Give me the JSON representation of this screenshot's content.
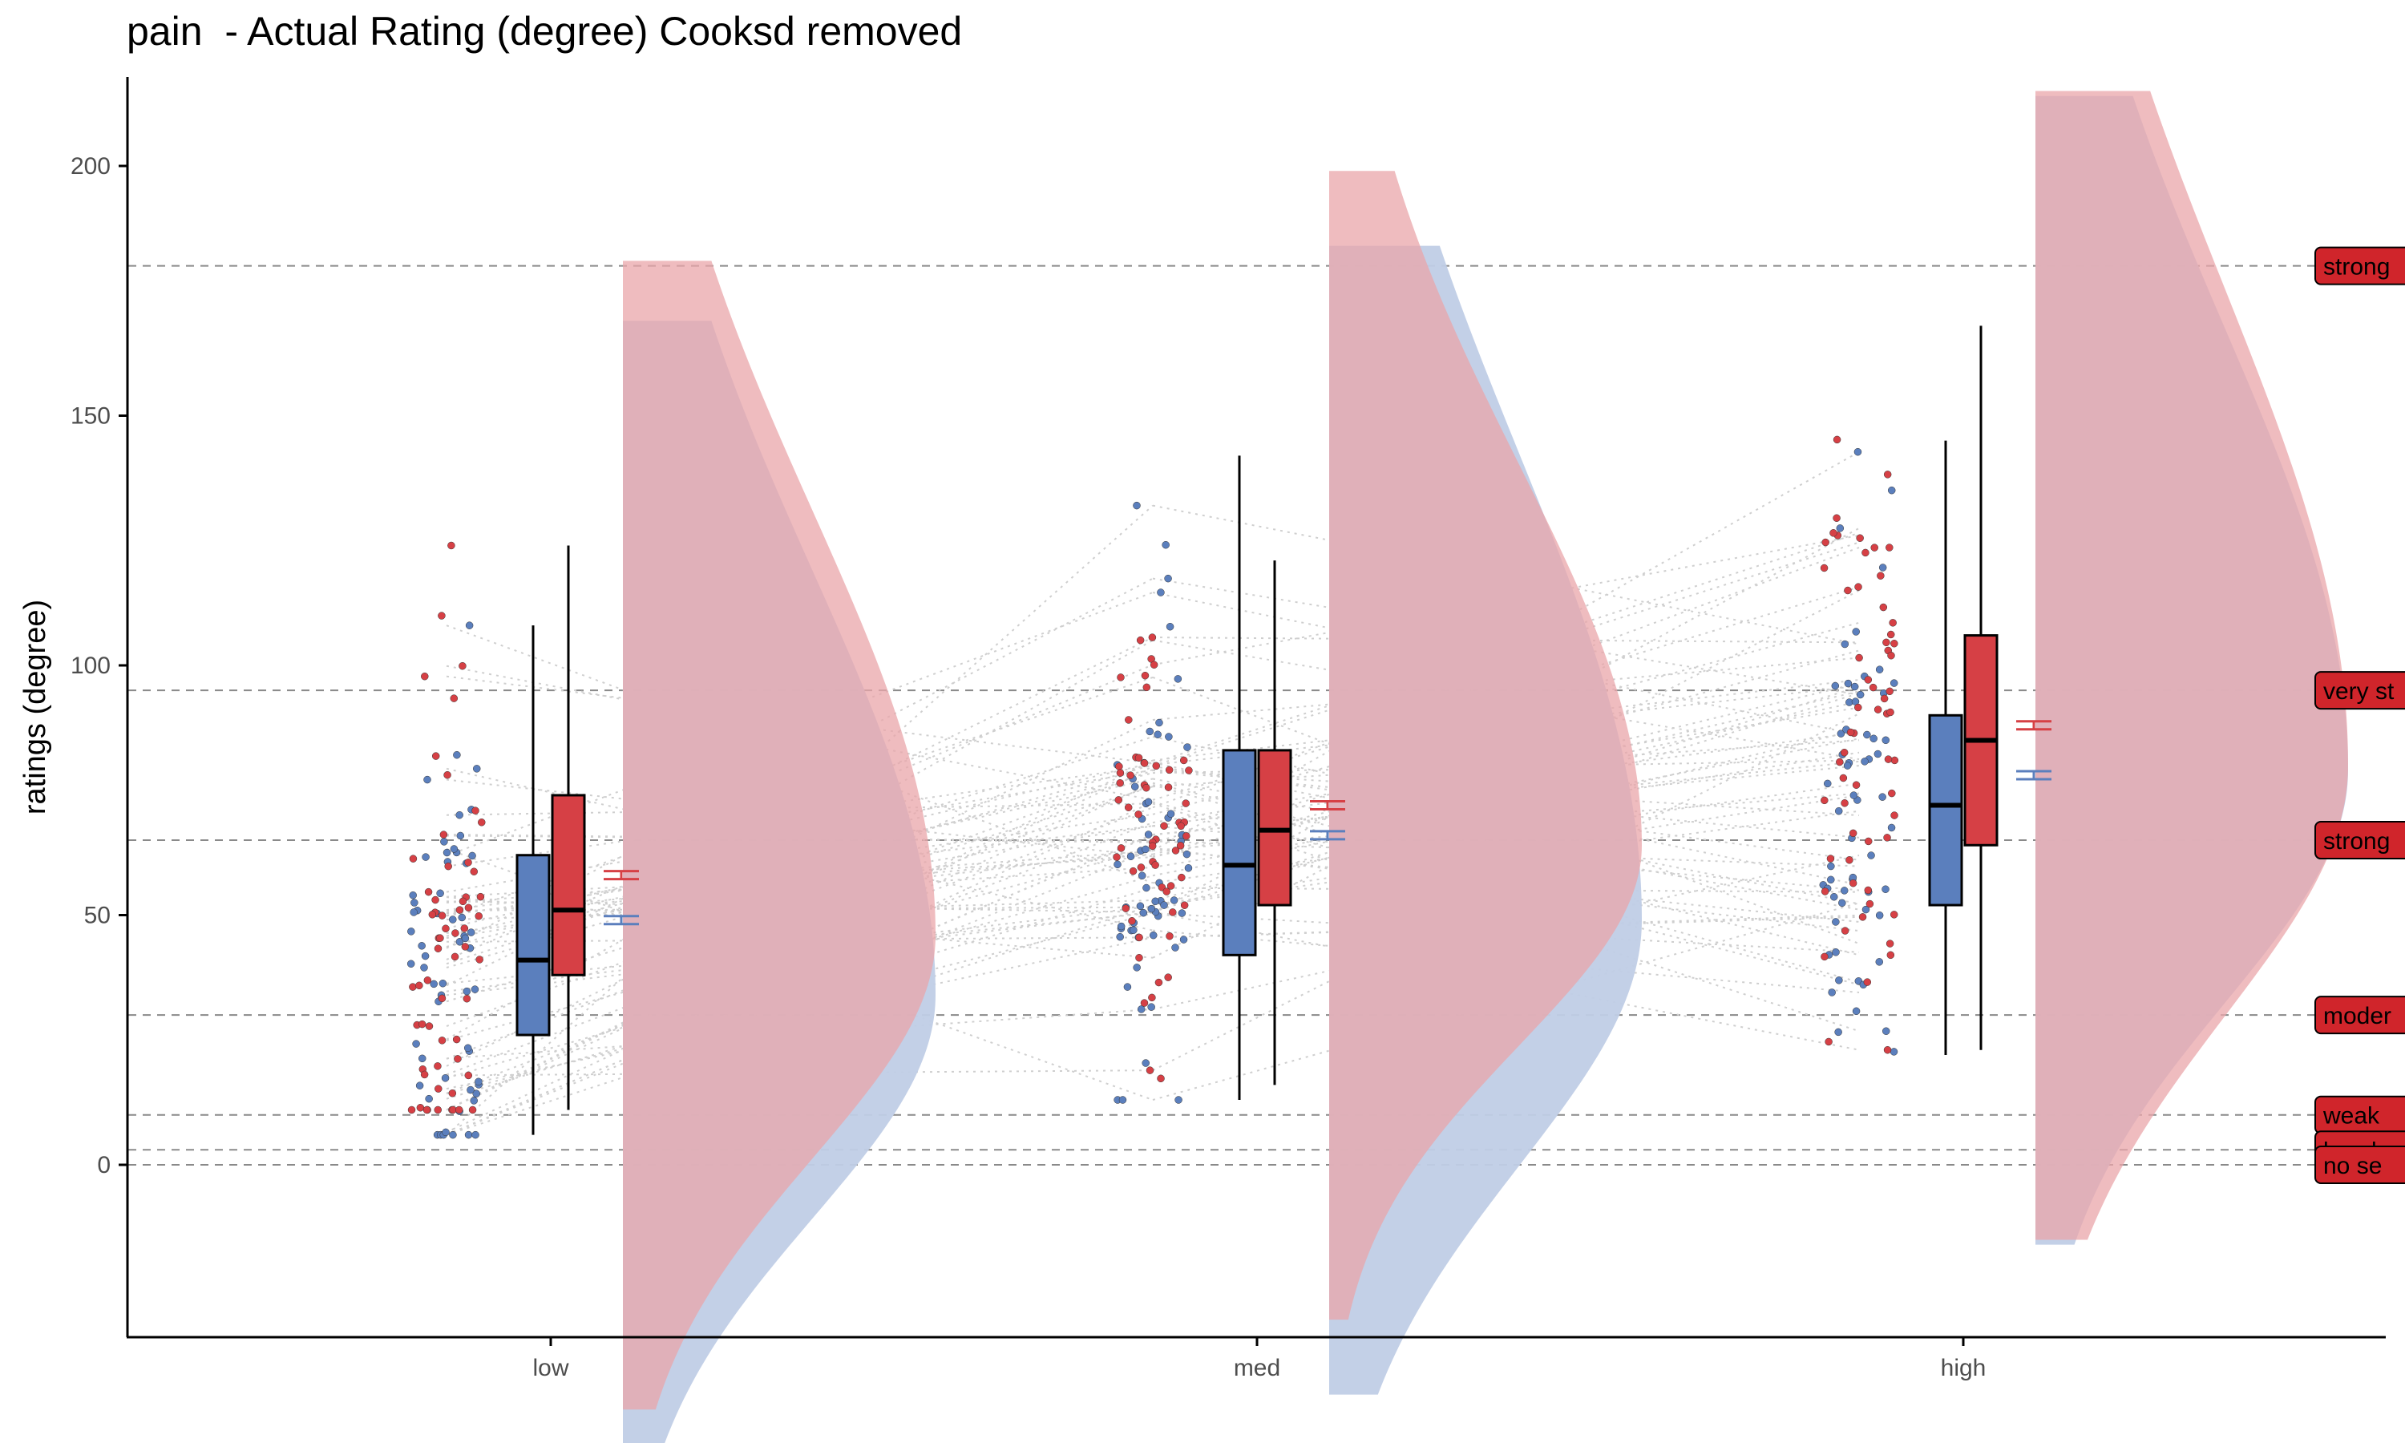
{
  "chart_data": {
    "type": "raincloud",
    "title": "pain  - Actual Rating (degree) Cooksd removed",
    "xlabel": "",
    "ylabel": "ratings (degree)",
    "ylim": [
      -35,
      218
    ],
    "yticks": [
      0,
      50,
      100,
      150,
      200
    ],
    "categories": [
      "low",
      "med",
      "high"
    ],
    "grid": false,
    "reference_lines": [
      {
        "value": 180,
        "label": "strong"
      },
      {
        "value": 95,
        "label": "very st"
      },
      {
        "value": 65,
        "label": "strong"
      },
      {
        "value": 30,
        "label": "moder"
      },
      {
        "value": 10,
        "label": "weak"
      },
      {
        "value": 3,
        "label": "barely"
      },
      {
        "value": 0,
        "label": "no se"
      }
    ],
    "groups": [
      {
        "color": "#5b7fbd",
        "fill": "#c0cde6",
        "box": [
          {
            "q1": 26,
            "median": 41,
            "q3": 62,
            "whisker_low": 6,
            "whisker_high": 108
          },
          {
            "q1": 42,
            "median": 60,
            "q3": 83,
            "whisker_low": 13,
            "whisker_high": 142
          },
          {
            "q1": 52,
            "median": 72,
            "q3": 90,
            "whisker_low": 22,
            "whisker_high": 145
          }
        ],
        "mean": [
          49,
          66,
          78
        ],
        "density_mode": [
          34,
          49,
          79
        ]
      },
      {
        "color": "#d64045",
        "fill": "#e9a6aa",
        "box": [
          {
            "q1": 38,
            "median": 51,
            "q3": 74,
            "whisker_low": 11,
            "whisker_high": 124
          },
          {
            "q1": 52,
            "median": 67,
            "q3": 83,
            "whisker_low": 16,
            "whisker_high": 121
          },
          {
            "q1": 64,
            "median": 85,
            "q3": 106,
            "whisker_low": 23,
            "whisker_high": 168
          }
        ],
        "mean": [
          58,
          72,
          88
        ],
        "density_mode": [
          46,
          64,
          80
        ]
      }
    ]
  }
}
